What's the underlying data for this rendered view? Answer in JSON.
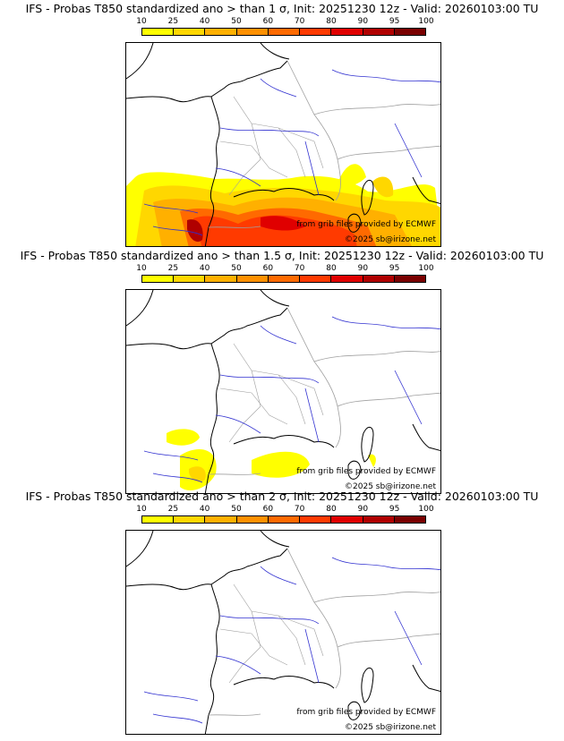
{
  "panels": [
    {
      "title": "IFS - Probas T850  standardized ano > than 1 σ, Init: 20251230 12z - Valid: 20260103:00 TU",
      "credit_source": "from grib files provided by ECMWF",
      "credit_copyright": "©2025 sb@irizone.net"
    },
    {
      "title": "IFS - Probas T850  standardized ano > than 1.5 σ, Init: 20251230 12z - Valid: 20260103:00 TU",
      "credit_source": "from grib files provided by ECMWF",
      "credit_copyright": "©2025 sb@irizone.net"
    },
    {
      "title": "IFS - Probas T850  standardized ano > than 2 σ, Init: 20251230 12z - Valid: 20260103:00 TU",
      "credit_source": "from grib files provided by ECMWF",
      "credit_copyright": "©2025 sb@irizone.net"
    }
  ],
  "legend": {
    "ticks": [
      "10",
      "25",
      "40",
      "50",
      "60",
      "70",
      "80",
      "90",
      "95",
      "100"
    ],
    "colors": [
      "#ffff00",
      "#ffd700",
      "#ffb000",
      "#ff9000",
      "#ff6a00",
      "#ff3a00",
      "#e00000",
      "#b00000",
      "#7a0000"
    ]
  },
  "map_colors": {
    "coast": "#000000",
    "borders": "#a0a0a0",
    "rivers": "#3030d0"
  }
}
